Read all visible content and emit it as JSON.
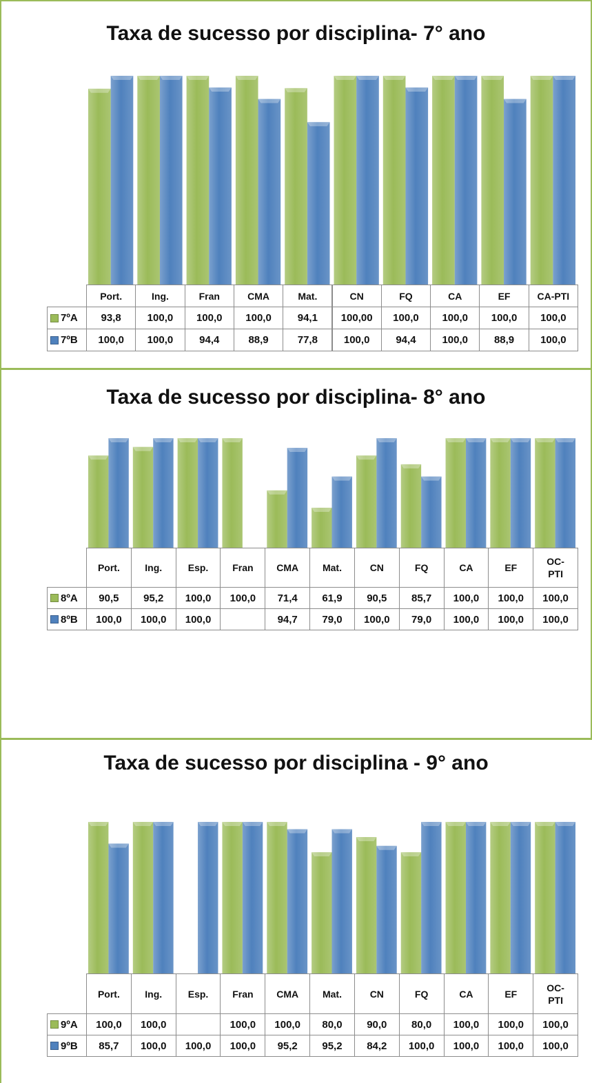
{
  "chart_data": [
    {
      "type": "bar",
      "title": "Taxa de sucesso por disciplina- 7° ano",
      "categories": [
        "Port.",
        "Ing.",
        "Fran",
        "CMA",
        "Mat.",
        "CN",
        "FQ",
        "CA",
        "EF",
        "CA-PTI"
      ],
      "ylim": [
        0,
        100
      ],
      "series": [
        {
          "name": "7ºA",
          "color": "#9bbb59",
          "values": [
            93.8,
            100,
            100,
            100,
            94.1,
            100,
            100,
            100,
            100,
            100
          ],
          "value_labels": [
            "93,8",
            "100,0",
            "100,0",
            "100,0",
            "94,1",
            "100,00",
            "100,0",
            "100,0",
            "100,0",
            "100,0"
          ]
        },
        {
          "name": "7ºB",
          "color": "#4f81bd",
          "values": [
            100,
            100,
            94.4,
            88.9,
            77.8,
            100,
            94.4,
            100,
            88.9,
            100
          ],
          "value_labels": [
            "100,0",
            "100,0",
            "94,4",
            "88,9",
            "77,8",
            "100,0",
            "94,4",
            "100,0",
            "88,9",
            "100,0"
          ]
        }
      ]
    },
    {
      "type": "bar",
      "title": "Taxa de sucesso por disciplina- 8° ano",
      "categories": [
        "Port.",
        "Ing.",
        "Esp.",
        "Fran",
        "CMA",
        "Mat.",
        "CN",
        "FQ",
        "CA",
        "EF",
        "OC-PTI"
      ],
      "ylim": [
        40,
        100
      ],
      "series": [
        {
          "name": "8ºA",
          "color": "#9bbb59",
          "values": [
            90.5,
            95.2,
            100,
            100,
            71.4,
            61.9,
            90.5,
            85.7,
            100,
            100,
            100
          ],
          "value_labels": [
            "90,5",
            "95,2",
            "100,0",
            "100,0",
            "71,4",
            "61,9",
            "90,5",
            "85,7",
            "100,0",
            "100,0",
            "100,0"
          ]
        },
        {
          "name": "8ºB",
          "color": "#4f81bd",
          "values": [
            100,
            100,
            100,
            null,
            94.7,
            79.0,
            100,
            79.0,
            100,
            100,
            100
          ],
          "value_labels": [
            "100,0",
            "100,0",
            "100,0",
            null,
            "94,7",
            "79,0",
            "100,0",
            "79,0",
            "100,0",
            "100,0",
            "100,0"
          ]
        }
      ]
    },
    {
      "type": "bar",
      "title": "Taxa de sucesso por disciplina - 9° ano",
      "categories": [
        "Port.",
        "Ing.",
        "Esp.",
        "Fran",
        "CMA",
        "Mat.",
        "CN",
        "FQ",
        "CA",
        "EF",
        "OC-PTI"
      ],
      "ylim": [
        0,
        100
      ],
      "series": [
        {
          "name": "9ºA",
          "color": "#9bbb59",
          "values": [
            100,
            100,
            null,
            100,
            100,
            80,
            90,
            80,
            100,
            100,
            100
          ],
          "value_labels": [
            "100,0",
            "100,0",
            null,
            "100,0",
            "100,0",
            "80,0",
            "90,0",
            "80,0",
            "100,0",
            "100,0",
            "100,0"
          ]
        },
        {
          "name": "9ºB",
          "color": "#4f81bd",
          "values": [
            85.7,
            100,
            100,
            100,
            95.2,
            95.2,
            84.2,
            100,
            100,
            100,
            100
          ],
          "value_labels": [
            "85,7",
            "100,0",
            "100,0",
            "100,0",
            "95,2",
            "95,2",
            "84,2",
            "100,0",
            "100,0",
            "100,0",
            "100,0"
          ]
        }
      ]
    }
  ]
}
